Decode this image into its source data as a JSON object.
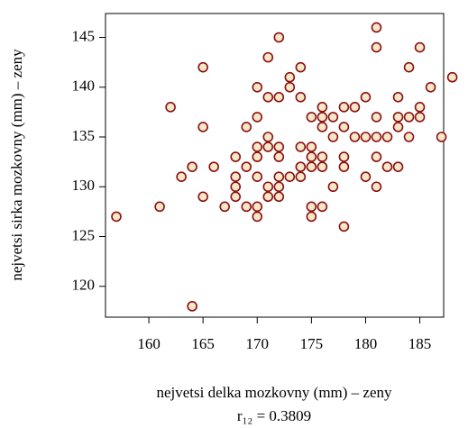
{
  "chart_data": {
    "type": "scatter",
    "xlabel": "nejvetsi delka mozkovny (mm) – zeny",
    "ylabel": "nejvetsi sirka mozkovny (mm) – zeny",
    "annotation": "r₁₂ = 0.3809",
    "marker_color": "#8b1010",
    "marker_fill": "#f6e7c9",
    "xlim": [
      156,
      187.2
    ],
    "ylim": [
      116.9,
      147.4
    ],
    "xticks": [
      160,
      165,
      170,
      175,
      180,
      185
    ],
    "yticks": [
      120,
      125,
      130,
      135,
      140,
      145
    ],
    "x": [
      157,
      161,
      162,
      163,
      164,
      164,
      165,
      165,
      165,
      166,
      167,
      168,
      168,
      168,
      168,
      169,
      169,
      169,
      170,
      170,
      170,
      170,
      170,
      170,
      170,
      171,
      171,
      171,
      171,
      171,
      171,
      172,
      172,
      172,
      172,
      172,
      172,
      172,
      173,
      173,
      173,
      174,
      174,
      174,
      174,
      174,
      175,
      175,
      175,
      175,
      175,
      175,
      176,
      176,
      176,
      176,
      176,
      176,
      177,
      177,
      177,
      178,
      178,
      178,
      178,
      178,
      179,
      179,
      180,
      180,
      180,
      181,
      181,
      181,
      181,
      181,
      181,
      182,
      182,
      183,
      183,
      183,
      183,
      184,
      184,
      184,
      185,
      185,
      185,
      186,
      187,
      188
    ],
    "y": [
      127,
      128,
      138,
      131,
      132,
      118,
      142,
      136,
      129,
      132,
      128,
      133,
      131,
      130,
      129,
      136,
      132,
      128,
      140,
      137,
      134,
      133,
      131,
      128,
      127,
      143,
      139,
      135,
      134,
      130,
      129,
      145,
      139,
      134,
      133,
      131,
      130,
      129,
      141,
      140,
      131,
      142,
      139,
      134,
      132,
      131,
      137,
      134,
      133,
      132,
      128,
      127,
      138,
      137,
      136,
      133,
      132,
      128,
      137,
      135,
      130,
      138,
      136,
      133,
      132,
      126,
      138,
      135,
      139,
      135,
      131,
      146,
      144,
      137,
      135,
      133,
      130,
      135,
      132,
      139,
      137,
      136,
      132,
      142,
      137,
      135,
      144,
      138,
      137,
      140,
      135,
      141
    ]
  }
}
